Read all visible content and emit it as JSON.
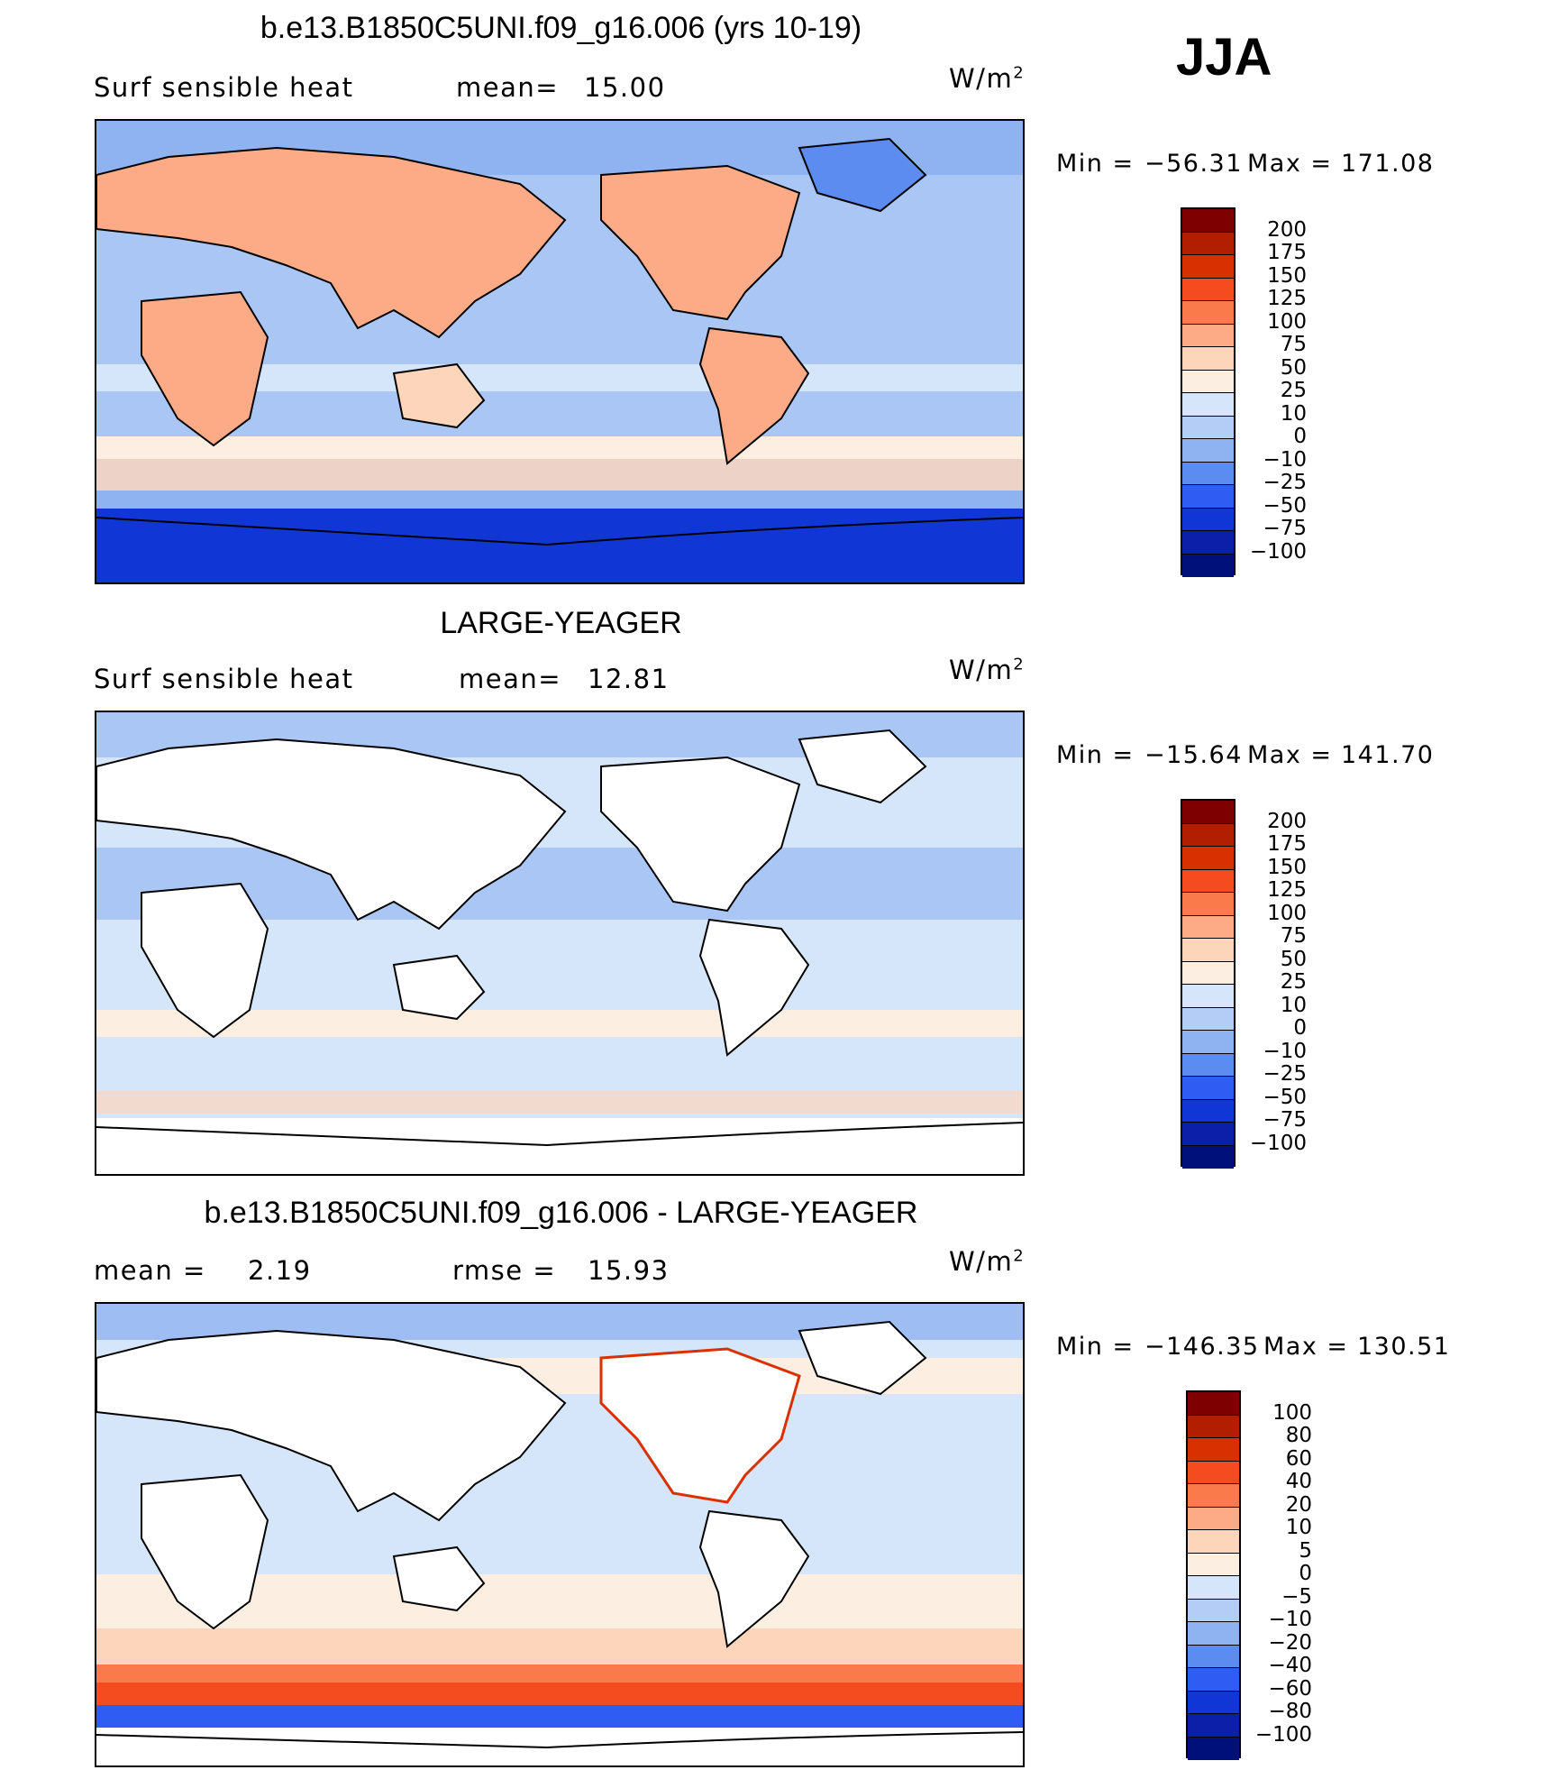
{
  "season": "JJA",
  "units_base": "W/m",
  "units_exp": "2",
  "panels": [
    {
      "title": "b.e13.B1850C5UNI.f09_g16.006 (yrs 10-19)",
      "left_label": "Surf  sensible  heat",
      "mean_label": "mean=",
      "mean_value": "15.00",
      "min_label": "Min  =",
      "min_value": "−56.31",
      "max_label": "Max  =",
      "max_value": "171.08",
      "colorbar": {
        "labels": [
          "200",
          "175",
          "150",
          "125",
          "100",
          "75",
          "50",
          "25",
          "10",
          "0",
          "−10",
          "−25",
          "−50",
          "−75",
          "−100"
        ],
        "colors": [
          "#7f0000",
          "#b21f00",
          "#d93000",
          "#f44c1e",
          "#fa7a4c",
          "#fcab86",
          "#fdd5bb",
          "#fdeee2",
          "#d6e6fa",
          "#b3cdf6",
          "#8fb3f1",
          "#5d8cf0",
          "#2f5cf2",
          "#1036d6",
          "#0c1fa8",
          "#00107a"
        ]
      }
    },
    {
      "title": "LARGE-YEAGER",
      "left_label": "Surf  sensible  heat",
      "mean_label": "mean=",
      "mean_value": "12.81",
      "min_label": "Min  =",
      "min_value": "−15.64",
      "max_label": "Max  =",
      "max_value": "141.70",
      "colorbar": {
        "labels": [
          "200",
          "175",
          "150",
          "125",
          "100",
          "75",
          "50",
          "25",
          "10",
          "0",
          "−10",
          "−25",
          "−50",
          "−75",
          "−100"
        ],
        "colors": [
          "#7f0000",
          "#b21f00",
          "#d93000",
          "#f44c1e",
          "#fa7a4c",
          "#fcab86",
          "#fdd5bb",
          "#fdeee2",
          "#d6e6fa",
          "#b3cdf6",
          "#8fb3f1",
          "#5d8cf0",
          "#2f5cf2",
          "#1036d6",
          "#0c1fa8",
          "#00107a"
        ]
      }
    },
    {
      "title": "b.e13.B1850C5UNI.f09_g16.006 - LARGE-YEAGER",
      "mean_label": "mean  =",
      "mean_value": "2.19",
      "rmse_label": "rmse  =",
      "rmse_value": "15.93",
      "min_label": "Min  =",
      "min_value": "−146.35",
      "max_label": "Max  =",
      "max_value": "130.51",
      "colorbar": {
        "labels": [
          "100",
          "80",
          "60",
          "40",
          "20",
          "10",
          "5",
          "0",
          "−5",
          "−10",
          "−20",
          "−40",
          "−60",
          "−80",
          "−100"
        ],
        "colors": [
          "#7f0000",
          "#b21f00",
          "#d93000",
          "#f44c1e",
          "#fa7a4c",
          "#fcab86",
          "#fdd5bb",
          "#fdeee2",
          "#d6e6fa",
          "#b3cdf6",
          "#8fb3f1",
          "#5d8cf0",
          "#2f5cf2",
          "#1036d6",
          "#0c1fa8",
          "#00107a"
        ]
      }
    }
  ]
}
